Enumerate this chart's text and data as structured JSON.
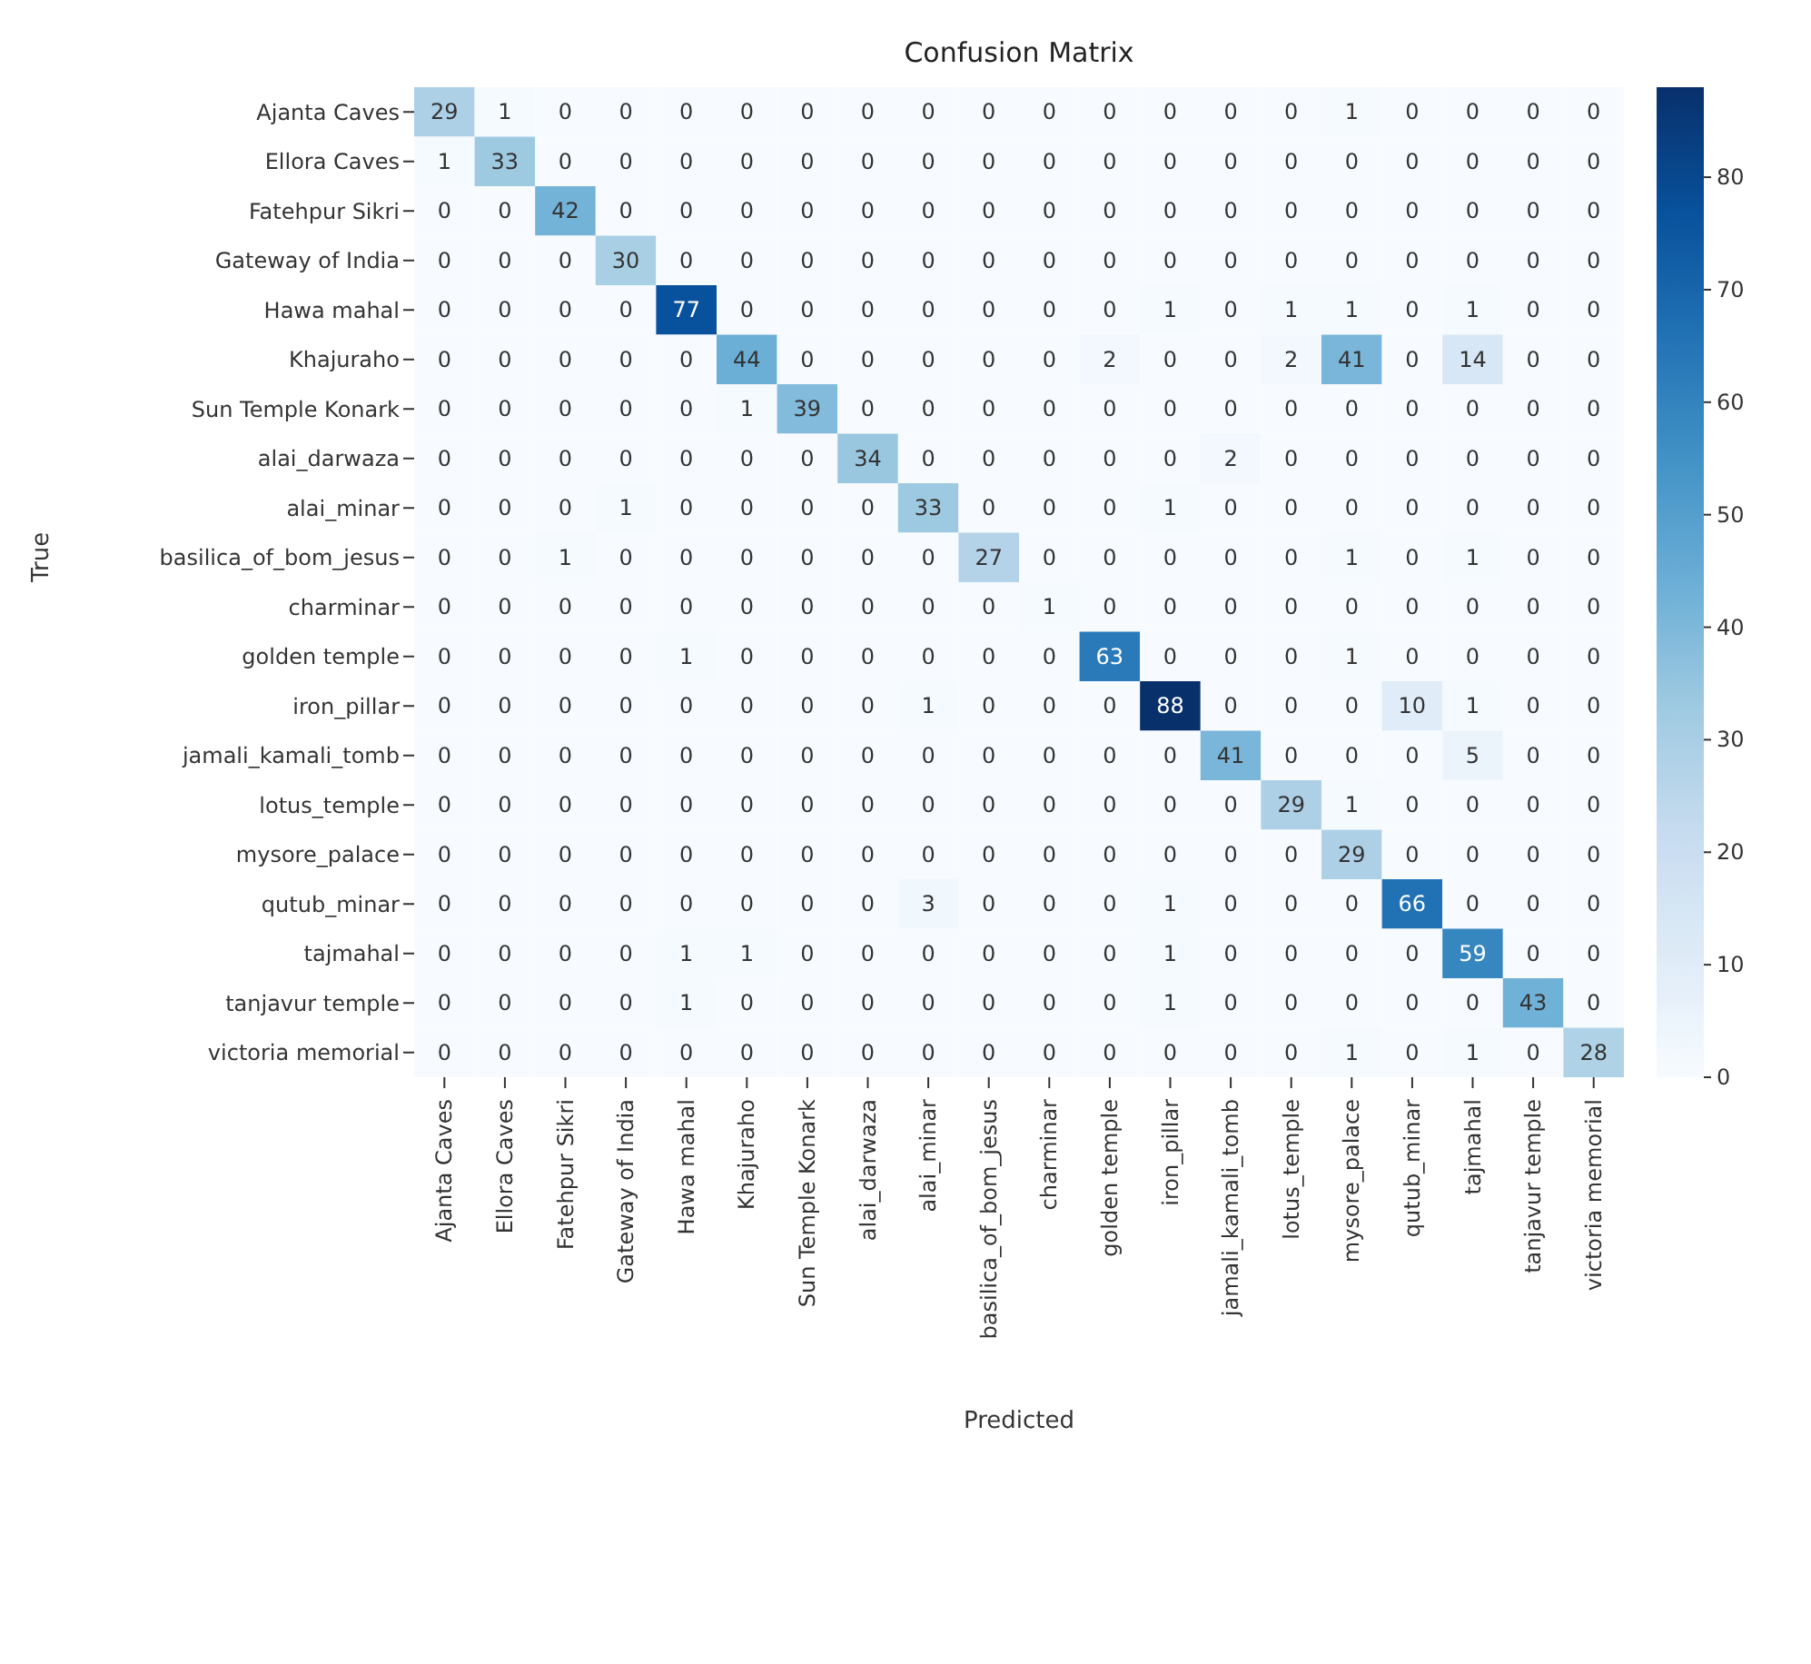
{
  "chart_data": {
    "type": "heatmap",
    "title": "Confusion Matrix",
    "xlabel": "Predicted",
    "ylabel": "True",
    "categories": [
      "Ajanta Caves",
      "Ellora Caves",
      "Fatehpur Sikri",
      "Gateway of India",
      "Hawa mahal",
      "Khajuraho",
      "Sun Temple Konark",
      "alai_darwaza",
      "alai_minar",
      "basilica_of_bom_jesus",
      "charminar",
      "golden temple",
      "iron_pillar",
      "jamali_kamali_tomb",
      "lotus_temple",
      "mysore_palace",
      "qutub_minar",
      "tajmahal",
      "tanjavur temple",
      "victoria memorial"
    ],
    "y_categories": [
      "Ajanta Caves",
      "Ellora Caves",
      "Fatehpur Sikri",
      "Gateway of India",
      "Hawa mahal",
      "Khajuraho",
      "Sun Temple Konark",
      "alai_darwaza",
      "alai_minar",
      "basilica_of_bom_jesus",
      "charminar",
      "golden temple",
      "iron_pillar",
      "jamali_kamali_tomb",
      "lotus_temple",
      "mysore_palace",
      "qutub_minar",
      "tajmahal",
      "tanjavur temple",
      "victoria memorial"
    ],
    "cells": [
      [
        29,
        1,
        0,
        0,
        0,
        0,
        0,
        0,
        0,
        0,
        0,
        0,
        0,
        0,
        0,
        1,
        0,
        0,
        0,
        0
      ],
      [
        1,
        33,
        0,
        0,
        0,
        0,
        0,
        0,
        0,
        0,
        0,
        0,
        0,
        0,
        0,
        0,
        0,
        0,
        0,
        0
      ],
      [
        0,
        0,
        42,
        0,
        0,
        0,
        0,
        0,
        0,
        0,
        0,
        0,
        0,
        0,
        0,
        0,
        0,
        0,
        0,
        0
      ],
      [
        0,
        0,
        0,
        30,
        0,
        0,
        0,
        0,
        0,
        0,
        0,
        0,
        0,
        0,
        0,
        0,
        0,
        0,
        0,
        0
      ],
      [
        0,
        0,
        0,
        0,
        77,
        0,
        0,
        0,
        0,
        0,
        0,
        0,
        1,
        0,
        1,
        1,
        0,
        1,
        0,
        0
      ],
      [
        0,
        0,
        0,
        0,
        0,
        44,
        0,
        0,
        0,
        0,
        0,
        2,
        0,
        0,
        2,
        41,
        0,
        14,
        0,
        0
      ],
      [
        0,
        0,
        0,
        0,
        0,
        1,
        39,
        0,
        0,
        0,
        0,
        0,
        0,
        0,
        0,
        0,
        0,
        0,
        0,
        0
      ],
      [
        0,
        0,
        0,
        0,
        0,
        0,
        0,
        34,
        0,
        0,
        0,
        0,
        0,
        2,
        0,
        0,
        0,
        0,
        0,
        0
      ],
      [
        0,
        0,
        0,
        1,
        0,
        0,
        0,
        0,
        33,
        0,
        0,
        0,
        1,
        0,
        0,
        0,
        0,
        0,
        0,
        0
      ],
      [
        0,
        0,
        1,
        0,
        0,
        0,
        0,
        0,
        0,
        27,
        0,
        0,
        0,
        0,
        0,
        1,
        0,
        1,
        0,
        0
      ],
      [
        0,
        0,
        0,
        0,
        0,
        0,
        0,
        0,
        0,
        0,
        1,
        0,
        0,
        0,
        0,
        0,
        0,
        0,
        0,
        0
      ],
      [
        0,
        0,
        0,
        0,
        1,
        0,
        0,
        0,
        0,
        0,
        0,
        63,
        0,
        0,
        0,
        1,
        0,
        0,
        0,
        0
      ],
      [
        0,
        0,
        0,
        0,
        0,
        0,
        0,
        0,
        1,
        0,
        0,
        0,
        88,
        0,
        0,
        0,
        10,
        1,
        0,
        0
      ],
      [
        0,
        0,
        0,
        0,
        0,
        0,
        0,
        0,
        0,
        0,
        0,
        0,
        0,
        41,
        0,
        0,
        0,
        5,
        0,
        0
      ],
      [
        0,
        0,
        0,
        0,
        0,
        0,
        0,
        0,
        0,
        0,
        0,
        0,
        0,
        0,
        29,
        1,
        0,
        0,
        0,
        0
      ],
      [
        0,
        0,
        0,
        0,
        0,
        0,
        0,
        0,
        0,
        0,
        0,
        0,
        0,
        0,
        0,
        29,
        0,
        0,
        0,
        0
      ],
      [
        0,
        0,
        0,
        0,
        0,
        0,
        0,
        0,
        3,
        0,
        0,
        0,
        1,
        0,
        0,
        0,
        66,
        0,
        0,
        0
      ],
      [
        0,
        0,
        0,
        0,
        1,
        1,
        0,
        0,
        0,
        0,
        0,
        0,
        1,
        0,
        0,
        0,
        0,
        59,
        0,
        0
      ],
      [
        0,
        0,
        0,
        0,
        1,
        0,
        0,
        0,
        0,
        0,
        0,
        0,
        1,
        0,
        0,
        0,
        0,
        0,
        43,
        0
      ],
      [
        0,
        0,
        0,
        0,
        0,
        0,
        0,
        0,
        0,
        0,
        0,
        0,
        0,
        0,
        0,
        1,
        0,
        1,
        0,
        28
      ]
    ],
    "clim": [
      0,
      88
    ],
    "cticks": [
      0,
      10,
      20,
      30,
      40,
      50,
      60,
      70,
      80
    ],
    "data_labels": true
  }
}
